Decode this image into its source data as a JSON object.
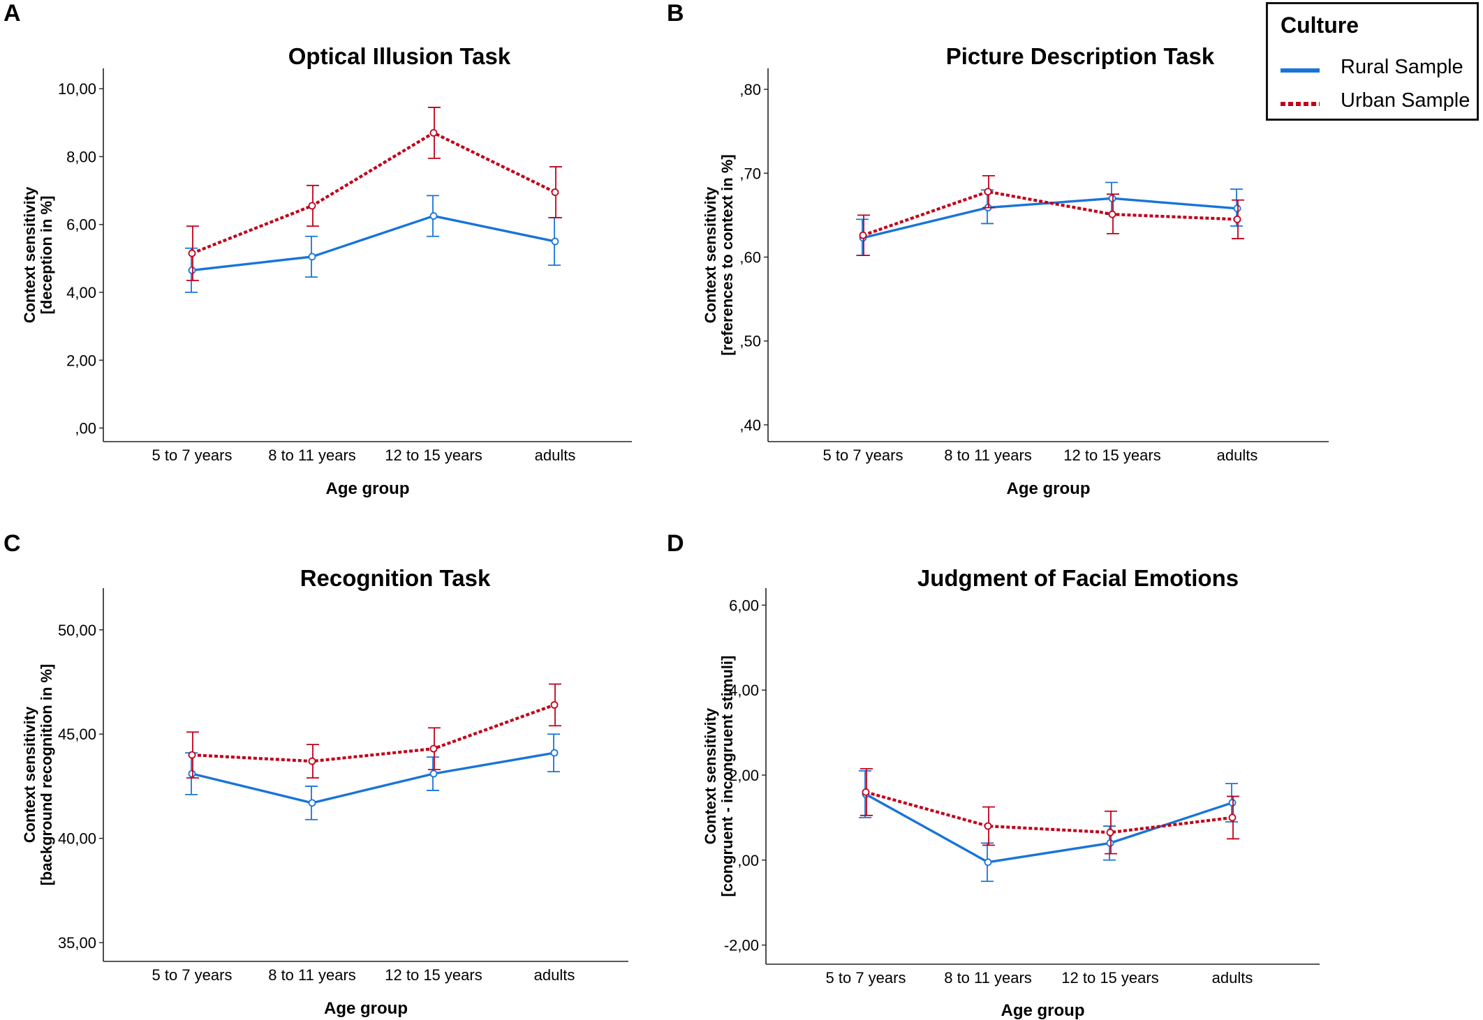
{
  "legend": {
    "title": "Culture",
    "items": [
      {
        "label": "Rural Sample",
        "color": "#1874d9",
        "style": "solid"
      },
      {
        "label": "Urban Sample",
        "color": "#c0001a",
        "style": "dotted"
      }
    ]
  },
  "chart_data": [
    {
      "panel": "A",
      "type": "line",
      "title": "Optical Illusion Task",
      "xlabel": "Age group",
      "ylabel": [
        "Context sensitivity",
        "[deception in %]"
      ],
      "categories": [
        "5 to 7 years",
        "8 to 11 years",
        "12 to 15 years",
        "adults"
      ],
      "yticks": [
        0,
        2,
        4,
        6,
        8,
        10
      ],
      "ytick_labels": [
        ",00",
        "2,00",
        "4,00",
        "6,00",
        "8,00",
        "10,00"
      ],
      "ylim": [
        -0.4,
        10.6
      ],
      "series": [
        {
          "name": "Rural Sample",
          "values": [
            4.65,
            5.05,
            6.25,
            5.5
          ],
          "err_low": [
            4.0,
            4.45,
            5.65,
            4.8
          ],
          "err_high": [
            5.3,
            5.65,
            6.85,
            6.2
          ]
        },
        {
          "name": "Urban Sample",
          "values": [
            5.15,
            6.55,
            8.7,
            6.95
          ],
          "err_low": [
            4.35,
            5.95,
            7.95,
            6.2
          ],
          "err_high": [
            5.95,
            7.15,
            9.45,
            7.7
          ]
        }
      ]
    },
    {
      "panel": "B",
      "type": "line",
      "title": "Picture Description Task",
      "xlabel": "Age group",
      "ylabel": [
        "Context sensitivity",
        "[references to context in %]"
      ],
      "categories": [
        "5 to 7 years",
        "8 to 11 years",
        "12 to 15 years",
        "adults"
      ],
      "yticks": [
        0.4,
        0.5,
        0.6,
        0.7,
        0.8
      ],
      "ytick_labels": [
        ",40",
        ",50",
        ",60",
        ",70",
        ",80"
      ],
      "ylim": [
        0.38,
        0.825
      ],
      "series": [
        {
          "name": "Rural Sample",
          "values": [
            0.623,
            0.659,
            0.67,
            0.658
          ],
          "err_low": [
            0.602,
            0.64,
            0.651,
            0.637
          ],
          "err_high": [
            0.645,
            0.68,
            0.689,
            0.681
          ]
        },
        {
          "name": "Urban Sample",
          "values": [
            0.626,
            0.678,
            0.651,
            0.645
          ],
          "err_low": [
            0.602,
            0.659,
            0.628,
            0.622
          ],
          "err_high": [
            0.65,
            0.697,
            0.675,
            0.668
          ]
        }
      ]
    },
    {
      "panel": "C",
      "type": "line",
      "title": "Recognition Task",
      "xlabel": "Age group",
      "ylabel": [
        "Context sensitivity",
        "[background recognition in %]"
      ],
      "categories": [
        "5 to 7 years",
        "8 to 11 years",
        "12 to 15 years",
        "adults"
      ],
      "yticks": [
        35,
        40,
        45,
        50
      ],
      "ytick_labels": [
        "35,00",
        "40,00",
        "45,00",
        "50,00"
      ],
      "ylim": [
        34.1,
        52.0
      ],
      "series": [
        {
          "name": "Rural Sample",
          "values": [
            43.1,
            41.7,
            43.1,
            44.1
          ],
          "err_low": [
            42.1,
            40.9,
            42.3,
            43.2
          ],
          "err_high": [
            44.1,
            42.5,
            43.9,
            45.0
          ]
        },
        {
          "name": "Urban Sample",
          "values": [
            44.0,
            43.7,
            44.3,
            46.4
          ],
          "err_low": [
            42.9,
            42.9,
            43.3,
            45.4
          ],
          "err_high": [
            45.1,
            44.5,
            45.3,
            47.4
          ]
        }
      ]
    },
    {
      "panel": "D",
      "type": "line",
      "title": "Judgment of Facial Emotions",
      "xlabel": "Age group",
      "ylabel": [
        "Context sensitivity",
        "[congruent - incongruent stimuli]"
      ],
      "categories": [
        "5 to 7 years",
        "8 to 11 years",
        "12 to 15 years",
        "adults"
      ],
      "yticks": [
        -2,
        0,
        2,
        4,
        6
      ],
      "ytick_labels": [
        "-2,00",
        ",00",
        "2,00",
        "4,00",
        "6,00"
      ],
      "ylim": [
        -2.45,
        6.4
      ],
      "series": [
        {
          "name": "Rural Sample",
          "values": [
            1.55,
            -0.05,
            0.4,
            1.35
          ],
          "err_low": [
            1.0,
            -0.5,
            0.0,
            0.9
          ],
          "err_high": [
            2.1,
            0.4,
            0.8,
            1.8
          ]
        },
        {
          "name": "Urban Sample",
          "values": [
            1.6,
            0.8,
            0.65,
            1.0
          ],
          "err_low": [
            1.05,
            0.35,
            0.15,
            0.5
          ],
          "err_high": [
            2.15,
            1.25,
            1.15,
            1.5
          ]
        }
      ]
    }
  ]
}
